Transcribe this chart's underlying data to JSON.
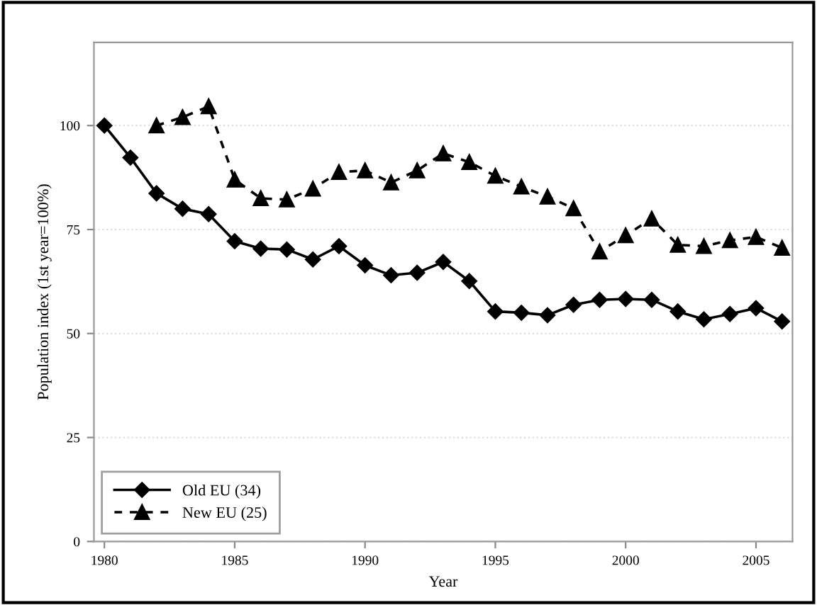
{
  "chart_data": {
    "type": "line",
    "xlabel": "Year",
    "ylabel": "Population index (1st year=100%)",
    "xlim": [
      1979.6,
      2006.4
    ],
    "xticks": [
      1980,
      1985,
      1990,
      1995,
      2000,
      2005
    ],
    "ylim": [
      0,
      120
    ],
    "yticks": [
      0,
      25,
      50,
      75,
      100
    ],
    "grid": "y",
    "legend": "bottom left",
    "series": [
      {
        "name": "Old EU (34)",
        "color": "#000000",
        "marker": "diamond",
        "line_style": "solid",
        "x": [
          1980,
          1981,
          1982,
          1983,
          1984,
          1985,
          1986,
          1987,
          1988,
          1989,
          1990,
          1991,
          1992,
          1993,
          1994,
          1995,
          1996,
          1997,
          1998,
          1999,
          2000,
          2001,
          2002,
          2003,
          2004,
          2005,
          2006
        ],
        "values": [
          100,
          92.3,
          83.7,
          80,
          78.7,
          72.2,
          70.4,
          70.2,
          67.8,
          71,
          66.4,
          64,
          64.6,
          67.2,
          62.6,
          55.3,
          55,
          54.4,
          56.9,
          58.1,
          58.3,
          58.1,
          55.3,
          53.4,
          54.7,
          56.1,
          52.9
        ]
      },
      {
        "name": "New EU (25)",
        "color": "#000000",
        "marker": "triangle",
        "line_style": "dashed",
        "x": [
          1982,
          1983,
          1984,
          1985,
          1986,
          1987,
          1988,
          1989,
          1990,
          1991,
          1992,
          1993,
          1994,
          1995,
          1996,
          1997,
          1998,
          1999,
          2000,
          2001,
          2002,
          2003,
          2004,
          2005,
          2006
        ],
        "values": [
          100,
          102,
          104.6,
          87,
          82.5,
          82.2,
          84.8,
          88.8,
          89.2,
          86.3,
          89.2,
          93.3,
          91.2,
          87.9,
          85.3,
          82.9,
          80.1,
          69.7,
          73.6,
          77.6,
          71.3,
          71,
          72.4,
          73.2,
          70.6
        ]
      }
    ]
  }
}
